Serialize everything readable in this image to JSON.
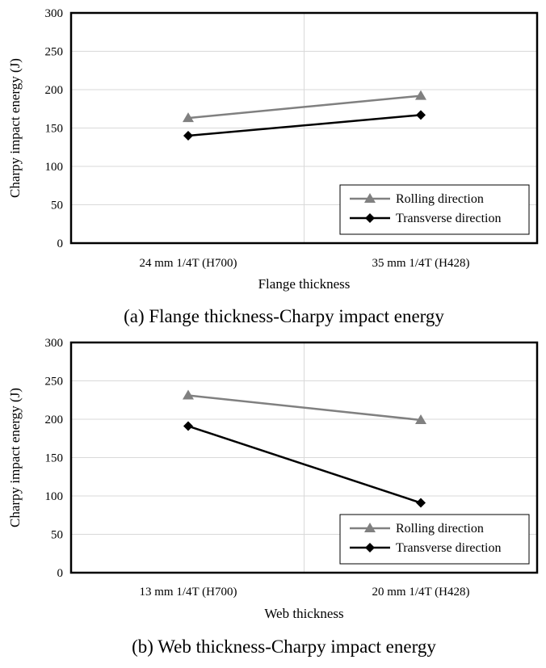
{
  "chart_data": [
    {
      "type": "line",
      "caption": "(a) Flange thickness-Charpy impact energy",
      "xlabel": "Flange thickness",
      "ylabel": "Charpy impact energy (J)",
      "categories": [
        "24 mm 1/4T (H700)",
        "35 mm 1/4T (H428)"
      ],
      "ylim": [
        0,
        300
      ],
      "yticks": [
        0,
        50,
        100,
        150,
        200,
        250,
        300
      ],
      "grid": true,
      "legend_position": "bottom-right",
      "series": [
        {
          "name": "Rolling direction",
          "marker": "triangle",
          "color": "#808080",
          "values": [
            163,
            192
          ]
        },
        {
          "name": "Transverse direction",
          "marker": "diamond",
          "color": "#000000",
          "values": [
            140,
            167
          ]
        }
      ]
    },
    {
      "type": "line",
      "caption": "(b) Web thickness-Charpy impact energy",
      "xlabel": "Web thickness",
      "ylabel": "Charpy impact energy (J)",
      "categories": [
        "13 mm 1/4T (H700)",
        "20 mm 1/4T (H428)"
      ],
      "ylim": [
        0,
        300
      ],
      "yticks": [
        0,
        50,
        100,
        150,
        200,
        250,
        300
      ],
      "grid": true,
      "legend_position": "bottom-right",
      "series": [
        {
          "name": "Rolling direction",
          "marker": "triangle",
          "color": "#808080",
          "values": [
            231,
            199
          ]
        },
        {
          "name": "Transverse direction",
          "marker": "diamond",
          "color": "#000000",
          "values": [
            191,
            91
          ]
        }
      ]
    }
  ]
}
